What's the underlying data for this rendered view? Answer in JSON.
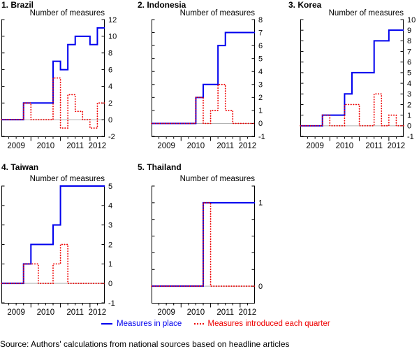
{
  "figure": {
    "legend": {
      "in_place_label": "Measures in place",
      "introduced_label": "Measures introduced each quarter"
    },
    "source_note": "Source: Authors' calculations from national sources based on headline articles",
    "colors": {
      "in_place": "#0000EE",
      "introduced": "#EE0000",
      "gridline": "#B2B2B2",
      "axis": "#000000"
    }
  },
  "chart_data": [
    {
      "type": "line",
      "title": "1. Brazil",
      "ylabel": "Number of measures",
      "x": [
        "2009Q1",
        "2009Q2",
        "2009Q3",
        "2009Q4",
        "2010Q1",
        "2010Q2",
        "2010Q3",
        "2010Q4",
        "2011Q1",
        "2011Q2",
        "2011Q3",
        "2011Q4",
        "2012Q1",
        "2012Q2"
      ],
      "x_year_labels": [
        "2009",
        "2010",
        "2011",
        "2012"
      ],
      "ylim": [
        -2,
        12
      ],
      "yticks": [
        -2,
        0,
        2,
        4,
        6,
        8,
        10,
        12
      ],
      "ytick_labeled": [
        -2,
        0,
        2,
        4,
        6,
        8,
        10,
        12
      ],
      "grid_zero_line": true,
      "legend_position": "none",
      "series": [
        {
          "name": "Measures in place",
          "style": "solid",
          "values": [
            0,
            0,
            0,
            2,
            2,
            2,
            2,
            7,
            6,
            9,
            10,
            10,
            9,
            11
          ]
        },
        {
          "name": "Measures introduced each quarter",
          "style": "dotted",
          "values": [
            0,
            0,
            0,
            2,
            0,
            0,
            0,
            5,
            -1,
            3,
            1,
            0,
            -1,
            2
          ]
        }
      ]
    },
    {
      "type": "line",
      "title": "2. Indonesia",
      "ylabel": "Number of measures",
      "x": [
        "2009Q1",
        "2009Q2",
        "2009Q3",
        "2009Q4",
        "2010Q1",
        "2010Q2",
        "2010Q3",
        "2010Q4",
        "2011Q1",
        "2011Q2",
        "2011Q3",
        "2011Q4",
        "2012Q1",
        "2012Q2"
      ],
      "x_year_labels": [
        "2009",
        "2010",
        "2011",
        "2012"
      ],
      "ylim": [
        -1,
        8
      ],
      "yticks": [
        -1,
        0,
        1,
        2,
        3,
        4,
        5,
        6,
        7,
        8
      ],
      "ytick_labeled": [
        -1,
        0,
        1,
        2,
        3,
        4,
        5,
        6,
        7,
        8
      ],
      "grid_zero_line": true,
      "legend_position": "none",
      "series": [
        {
          "name": "Measures in place",
          "style": "solid",
          "values": [
            0,
            0,
            0,
            0,
            0,
            0,
            2,
            3,
            3,
            6,
            7,
            7,
            7,
            7
          ]
        },
        {
          "name": "Measures introduced each quarter",
          "style": "dotted",
          "values": [
            0,
            0,
            0,
            0,
            0,
            0,
            2,
            0,
            1,
            3,
            1,
            0,
            0,
            0
          ]
        }
      ]
    },
    {
      "type": "line",
      "title": "3. Korea",
      "ylabel": "Number of measures",
      "x": [
        "2009Q1",
        "2009Q2",
        "2009Q3",
        "2009Q4",
        "2010Q1",
        "2010Q2",
        "2010Q3",
        "2010Q4",
        "2011Q1",
        "2011Q2",
        "2011Q3",
        "2011Q4",
        "2012Q1",
        "2012Q2"
      ],
      "x_year_labels": [
        "2009",
        "2010",
        "2011",
        "2012"
      ],
      "ylim": [
        -1,
        10
      ],
      "yticks": [
        -1,
        0,
        1,
        2,
        3,
        4,
        5,
        6,
        7,
        8,
        9,
        10
      ],
      "ytick_labeled": [
        -1,
        0,
        1,
        2,
        3,
        4,
        5,
        6,
        7,
        8,
        9,
        10
      ],
      "grid_zero_line": true,
      "legend_position": "none",
      "series": [
        {
          "name": "Measures in place",
          "style": "solid",
          "values": [
            0,
            0,
            0,
            1,
            1,
            1,
            3,
            5,
            5,
            5,
            8,
            8,
            9,
            9
          ]
        },
        {
          "name": "Measures introduced each quarter",
          "style": "dotted",
          "values": [
            0,
            0,
            0,
            1,
            0,
            0,
            2,
            2,
            0,
            0,
            3,
            0,
            1,
            0
          ]
        }
      ]
    },
    {
      "type": "line",
      "title": "4. Taiwan",
      "ylabel": "Number of measures",
      "x": [
        "2009Q1",
        "2009Q2",
        "2009Q3",
        "2009Q4",
        "2010Q1",
        "2010Q2",
        "2010Q3",
        "2010Q4",
        "2011Q1",
        "2011Q2",
        "2011Q3",
        "2011Q4",
        "2012Q1",
        "2012Q2"
      ],
      "x_year_labels": [
        "2009",
        "2010",
        "2011",
        "2012"
      ],
      "ylim": [
        -1,
        5
      ],
      "yticks": [
        -1,
        0,
        1,
        2,
        3,
        4,
        5
      ],
      "ytick_labeled": [
        -1,
        0,
        1,
        2,
        3,
        4,
        5
      ],
      "grid_zero_line": true,
      "legend_position": "none",
      "series": [
        {
          "name": "Measures in place",
          "style": "solid",
          "values": [
            0,
            0,
            0,
            1,
            2,
            2,
            2,
            3,
            5,
            5,
            5,
            5,
            5,
            5
          ]
        },
        {
          "name": "Measures introduced each quarter",
          "style": "dotted",
          "values": [
            0,
            0,
            0,
            1,
            1,
            0,
            0,
            1,
            2,
            0,
            0,
            0,
            0,
            0
          ]
        }
      ]
    },
    {
      "type": "line",
      "title": "5. Thailand",
      "ylabel": "Number of measures",
      "x": [
        "2009Q1",
        "2009Q2",
        "2009Q3",
        "2009Q4",
        "2010Q1",
        "2010Q2",
        "2010Q3",
        "2010Q4",
        "2011Q1",
        "2011Q2",
        "2011Q3",
        "2011Q4",
        "2012Q1",
        "2012Q2"
      ],
      "x_year_labels": [
        "2009",
        "2010",
        "2011",
        "2012"
      ],
      "ylim": [
        -0.2,
        1.2
      ],
      "yticks": [
        0,
        0.2,
        0.4,
        0.6,
        0.8,
        1,
        1.2
      ],
      "ytick_labeled": [
        0,
        1
      ],
      "grid_zero_line": true,
      "legend_position": "none",
      "series": [
        {
          "name": "Measures in place",
          "style": "solid",
          "values": [
            0,
            0,
            0,
            0,
            0,
            0,
            0,
            1,
            1,
            1,
            1,
            1,
            1,
            1
          ]
        },
        {
          "name": "Measures introduced each quarter",
          "style": "dotted",
          "values": [
            0,
            0,
            0,
            0,
            0,
            0,
            0,
            1,
            0,
            0,
            0,
            0,
            0,
            0
          ]
        }
      ]
    }
  ]
}
